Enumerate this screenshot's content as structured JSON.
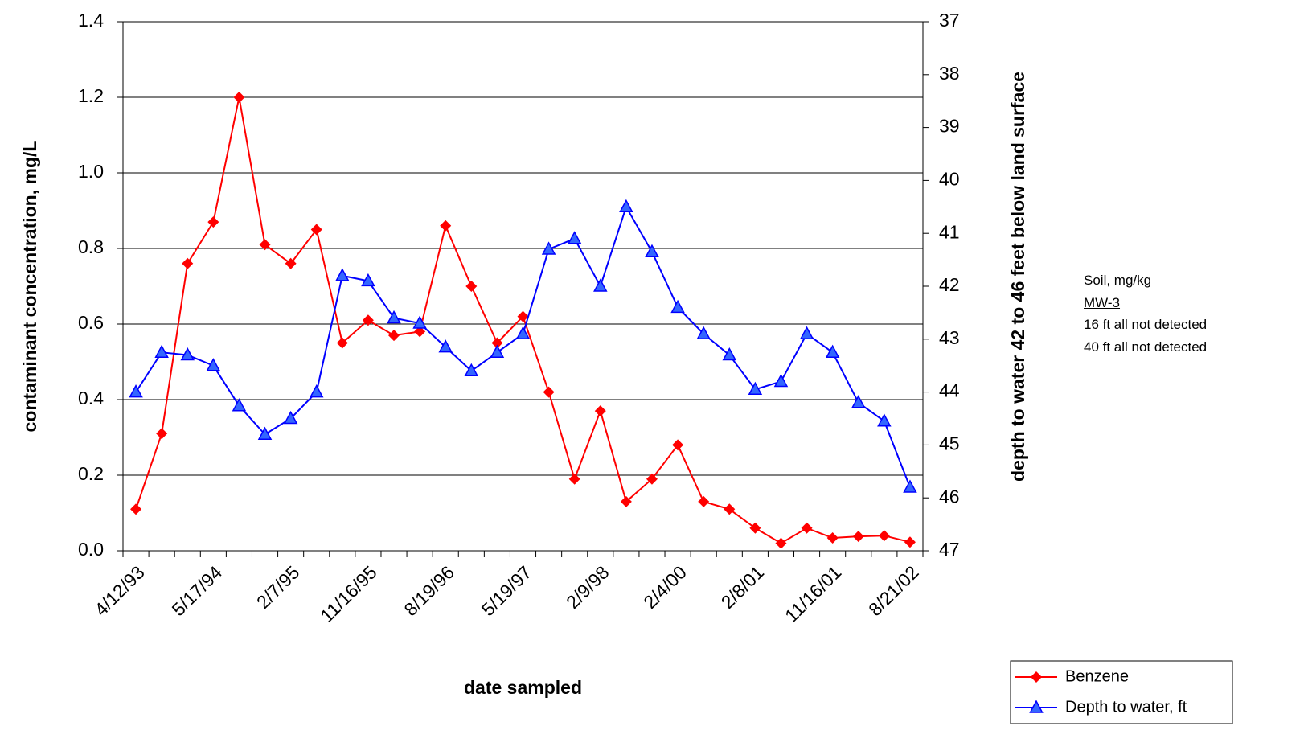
{
  "chart_data": {
    "type": "line",
    "xlabel": "date sampled",
    "ylabel": "contaminant concentration, mg/L",
    "y2label": "depth to water 42 to 46 feet below land surface",
    "categories": [
      "4/12/93",
      null,
      null,
      "5/17/94",
      null,
      null,
      "2/7/95",
      null,
      null,
      "11/16/95",
      null,
      null,
      "8/19/96",
      null,
      null,
      "5/19/97",
      null,
      null,
      "2/9/98",
      null,
      null,
      "2/4/00",
      null,
      null,
      "2/8/01",
      null,
      null,
      "11/16/01",
      null,
      null,
      "8/21/02"
    ],
    "series": [
      {
        "name": "Benzene",
        "color": "#ff0000",
        "marker": "diamond",
        "values": [
          0.11,
          0.31,
          0.76,
          0.87,
          1.2,
          0.81,
          0.76,
          0.85,
          0.55,
          0.61,
          0.57,
          0.58,
          0.86,
          0.7,
          0.55,
          0.62,
          0.42,
          0.19,
          0.37,
          0.13,
          0.19,
          0.28,
          0.13,
          0.11,
          0.06,
          0.02,
          0.06,
          0.034,
          0.038,
          0.04,
          0.023
        ]
      },
      {
        "name": "Depth to water, ft",
        "color": "#0000ff",
        "marker": "triangle",
        "axis": "y2",
        "values": [
          44.0,
          43.25,
          43.3,
          43.5,
          44.26,
          44.8,
          44.5,
          44.0,
          41.8,
          41.9,
          42.6,
          42.7,
          43.15,
          43.6,
          43.25,
          42.9,
          41.3,
          41.1,
          42.0,
          40.5,
          41.35,
          42.4,
          42.9,
          43.3,
          43.95,
          43.8,
          42.9,
          43.25,
          44.2,
          44.55,
          45.8
        ]
      }
    ],
    "ylim": [
      0,
      1.4
    ],
    "yticks": [
      {
        "value": 0,
        "label": "0.0"
      },
      0.2,
      0.4,
      0.6,
      0.8,
      {
        "value": 1,
        "label": "1.0"
      },
      1.2,
      1.4
    ],
    "y2lim": [
      47,
      37
    ],
    "y2ticks": [
      37,
      38,
      39,
      40,
      41,
      42,
      43,
      44,
      45,
      46,
      47
    ],
    "grid": true,
    "legend": "bottom-right",
    "annotations": [
      "Soil, mg/kg",
      "MW-3",
      "16 ft all not detected",
      "40 ft all not detected"
    ]
  }
}
